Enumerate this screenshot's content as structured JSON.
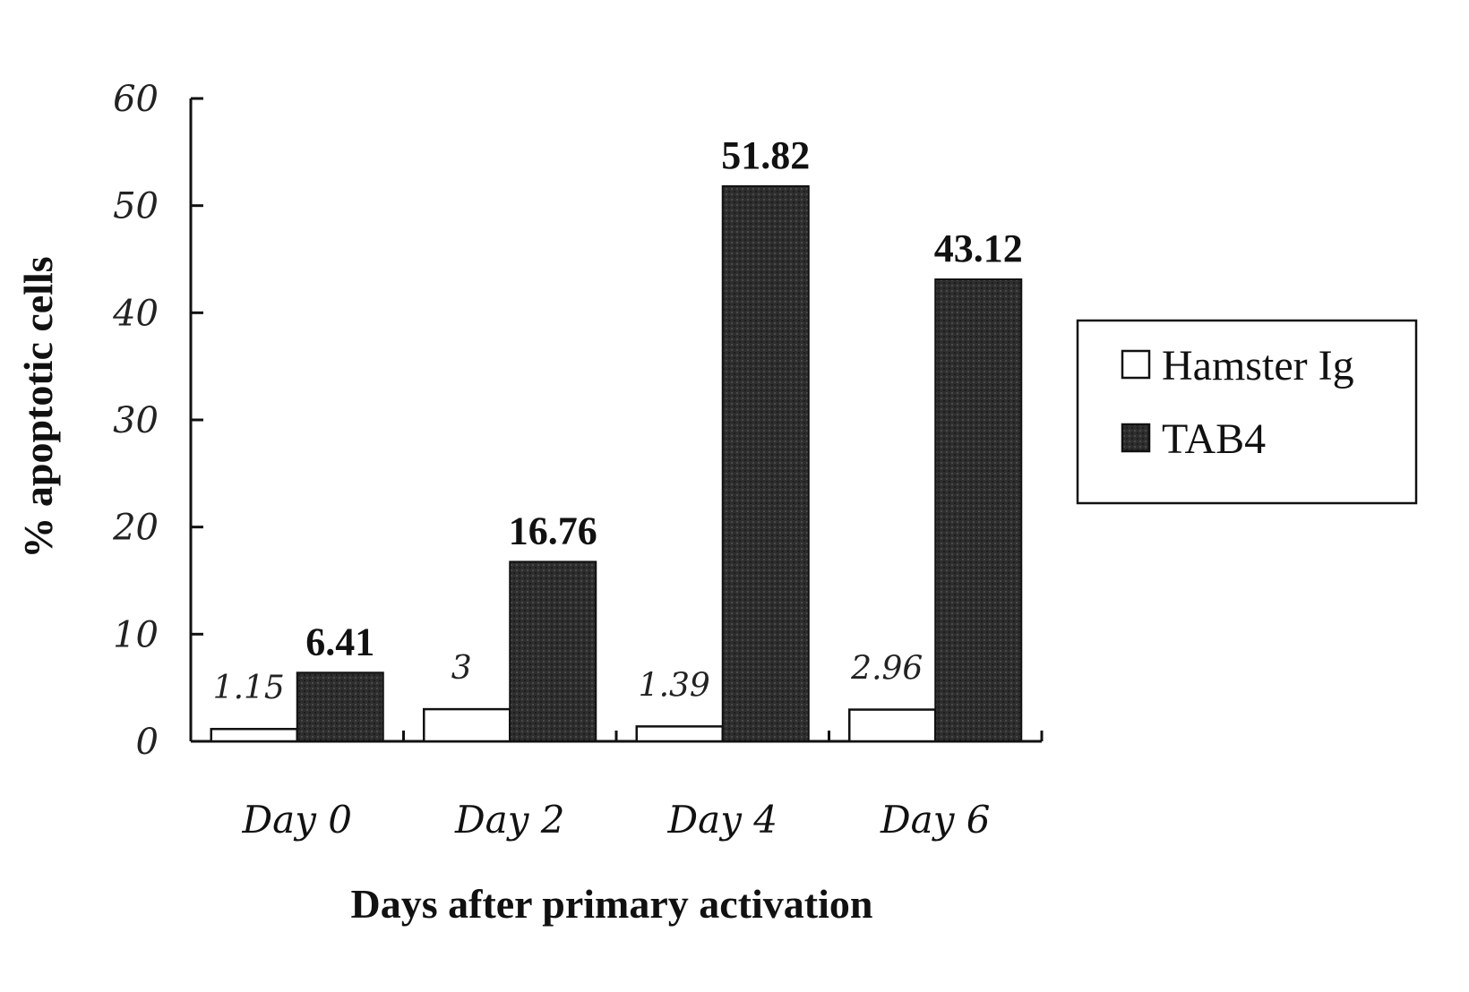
{
  "chart_data": {
    "type": "bar",
    "categories": [
      "Day 0",
      "Day 2",
      "Day 4",
      "Day 6"
    ],
    "series": [
      {
        "name": "Hamster Ig",
        "values": [
          1.15,
          3,
          1.39,
          2.96
        ],
        "labels": [
          "1.15",
          "3",
          "1.39",
          "2.96"
        ],
        "color": "#ffffff"
      },
      {
        "name": "TAB4",
        "values": [
          6.41,
          16.76,
          51.82,
          43.12
        ],
        "labels": [
          "6.41",
          "16.76",
          "51.82",
          "43.12"
        ],
        "color": "#2a2a2a"
      }
    ],
    "xlabel": "Days after primary activation",
    "ylabel": "% apoptotic cells",
    "ylim": [
      0,
      60
    ],
    "yticks": [
      "0",
      "10",
      "20",
      "30",
      "40",
      "50",
      "60"
    ],
    "legend_position": "right",
    "grid": false
  }
}
